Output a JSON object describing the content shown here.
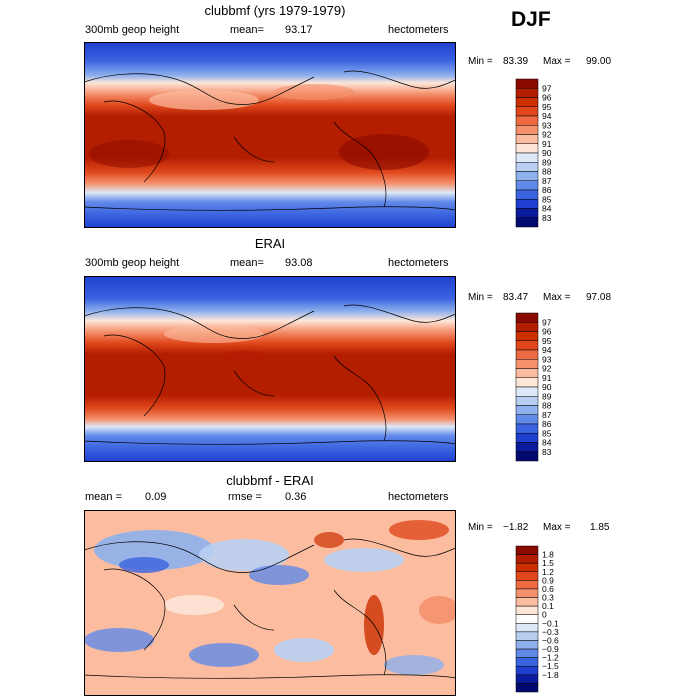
{
  "season": "DJF",
  "panels": [
    {
      "title": "clubbmf (yrs 1979-1979)",
      "left_label": "300mb geop height",
      "mean_label": "mean=",
      "mean_value": "93.17",
      "units": "hectometers",
      "min_label": "Min =",
      "min_value": "83.39",
      "max_label": "Max =",
      "max_value": "99.00",
      "colorbar_levels": [
        "97",
        "96",
        "95",
        "94",
        "93",
        "92",
        "91",
        "90",
        "89",
        "88",
        "87",
        "86",
        "85",
        "84",
        "83"
      ],
      "colorbar_colors": [
        "#8b0a00",
        "#b31d00",
        "#cc3000",
        "#e0481c",
        "#ee6a42",
        "#f5906d",
        "#fbbca0",
        "#fde6d8",
        "#dde8f8",
        "#b8cff2",
        "#8eb0ed",
        "#6189e8",
        "#3a63e0",
        "#1e3fcf",
        "#0a1a9c",
        "#020a70"
      ]
    },
    {
      "title": "ERAI",
      "left_label": "300mb geop height",
      "mean_label": "mean=",
      "mean_value": "93.08",
      "units": "hectometers",
      "min_label": "Min =",
      "min_value": "83.47",
      "max_label": "Max =",
      "max_value": "97.08",
      "colorbar_levels": [
        "97",
        "96",
        "95",
        "94",
        "93",
        "92",
        "91",
        "90",
        "89",
        "88",
        "87",
        "86",
        "85",
        "84",
        "83"
      ],
      "colorbar_colors": [
        "#8b0a00",
        "#b31d00",
        "#cc3000",
        "#e0481c",
        "#ee6a42",
        "#f5906d",
        "#fbbca0",
        "#fde6d8",
        "#dde8f8",
        "#b8cff2",
        "#8eb0ed",
        "#6189e8",
        "#3a63e0",
        "#1e3fcf",
        "#0a1a9c",
        "#020a70"
      ]
    },
    {
      "title": "clubbmf - ERAI",
      "left_label": "mean =",
      "mean_label": "",
      "mean_value": "0.09",
      "rmse_label": "rmse =",
      "rmse_value": "0.36",
      "units": "hectometers",
      "min_label": "Min =",
      "min_value": "−1.82",
      "max_label": "Max =",
      "max_value": "1.85",
      "colorbar_levels": [
        "1.8",
        "1.5",
        "1.2",
        "0.9",
        "0.6",
        "0.3",
        "0.1",
        "0",
        "−0.1",
        "−0.3",
        "−0.6",
        "−0.9",
        "−1.2",
        "−1.5",
        "−1.8"
      ],
      "colorbar_colors": [
        "#8b0a00",
        "#b31d00",
        "#cc3000",
        "#e0481c",
        "#ee6a42",
        "#f5906d",
        "#fbbca0",
        "#fde6d8",
        "#ffffff",
        "#dde8f8",
        "#b8cff2",
        "#8eb0ed",
        "#6189e8",
        "#3a63e0",
        "#1e3fcf",
        "#0a1a9c",
        "#020a70"
      ]
    }
  ]
}
